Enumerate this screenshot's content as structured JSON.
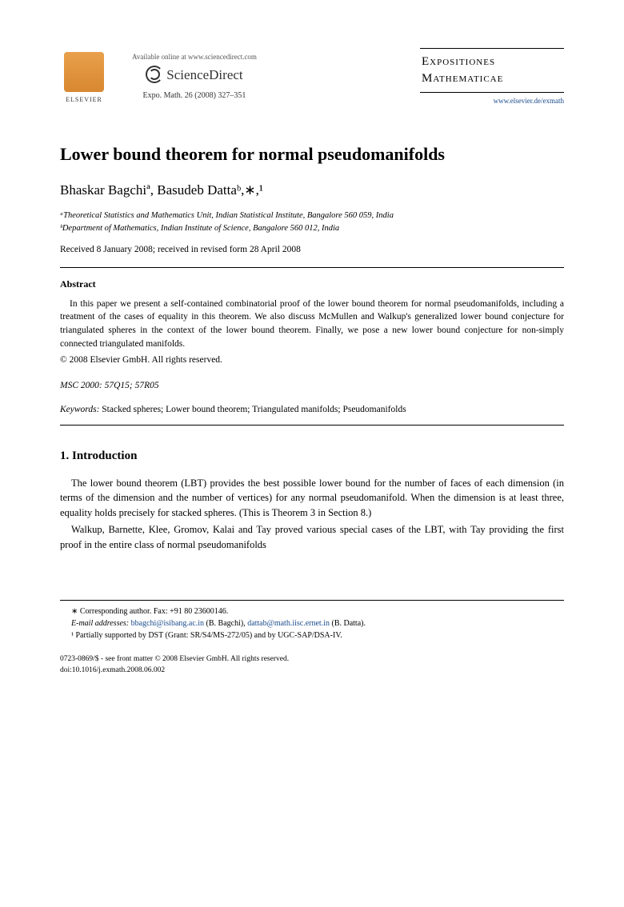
{
  "header": {
    "elsevier_label": "ELSEVIER",
    "sd_available": "Available online at www.sciencedirect.com",
    "sd_name": "ScienceDirect",
    "journal_ref": "Expo. Math. 26 (2008) 327–351",
    "journal_title_1": "Expositiones",
    "journal_title_2": "Mathematicae",
    "journal_url": "www.elsevier.de/exmath"
  },
  "title": "Lower bound theorem for normal pseudomanifolds",
  "authors": "Bhaskar Bagchiª, Basudeb Dattaᵇ,∗,¹",
  "affiliations": {
    "a": "ᵃTheoretical Statistics and Mathematics Unit, Indian Statistical Institute, Bangalore 560 059, India",
    "b": "ᵇDepartment of Mathematics, Indian Institute of Science, Bangalore 560 012, India"
  },
  "dates": "Received 8 January 2008; received in revised form 28 April 2008",
  "abstract": {
    "heading": "Abstract",
    "text": "In this paper we present a self-contained combinatorial proof of the lower bound theorem for normal pseudomanifolds, including a treatment of the cases of equality in this theorem. We also discuss McMullen and Walkup's generalized lower bound conjecture for triangulated spheres in the context of the lower bound theorem. Finally, we pose a new lower bound conjecture for non-simply connected triangulated manifolds.",
    "copyright": "© 2008 Elsevier GmbH. All rights reserved."
  },
  "msc": {
    "label": "MSC 2000:",
    "codes": "57Q15; 57R05"
  },
  "keywords": {
    "label": "Keywords:",
    "text": "Stacked spheres; Lower bound theorem; Triangulated manifolds; Pseudomanifolds"
  },
  "section1": {
    "heading": "1.  Introduction",
    "para1": "The lower bound theorem (LBT) provides the best possible lower bound for the number of faces of each dimension (in terms of the dimension and the number of vertices) for any normal pseudomanifold. When the dimension is at least three, equality holds precisely for stacked spheres. (This is Theorem 3 in Section 8.)",
    "para2": "Walkup, Barnette, Klee, Gromov, Kalai and Tay proved various special cases of the LBT, with Tay providing the first proof in the entire class of normal pseudomanifolds"
  },
  "footnotes": {
    "corresponding": "∗ Corresponding author. Fax: +91 80 23600146.",
    "email_label": "E-mail addresses:",
    "email1": "bbagchi@isibang.ac.in",
    "email1_name": "(B. Bagchi),",
    "email2": "dattab@math.iisc.ernet.in",
    "email2_name": "(B. Datta).",
    "support": "¹ Partially supported by DST (Grant: SR/S4/MS-272/05) and by UGC-SAP/DSA-IV."
  },
  "footer": {
    "line1": "0723-0869/$ - see front matter © 2008 Elsevier GmbH. All rights reserved.",
    "line2": "doi:10.1016/j.exmath.2008.06.002"
  },
  "colors": {
    "text": "#000000",
    "link": "#1a4b8c",
    "elsevier_orange": "#e8a04a",
    "background": "#ffffff"
  }
}
